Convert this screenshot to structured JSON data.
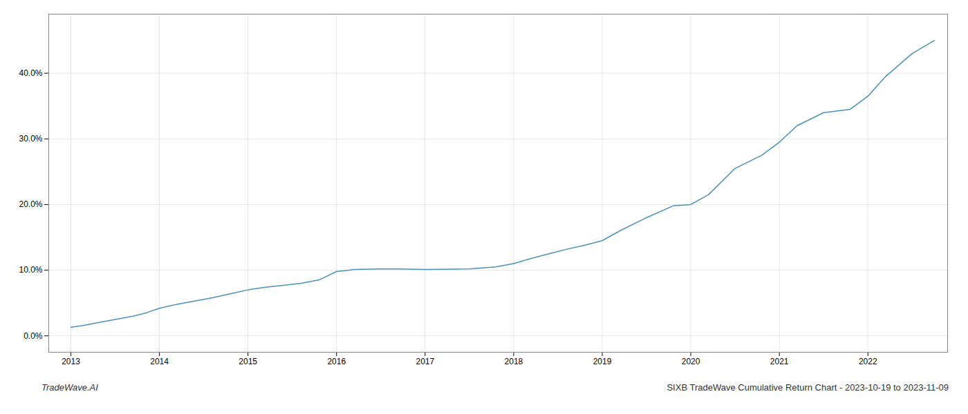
{
  "chart_data": {
    "type": "line",
    "title": "SIXB TradeWave Cumulative Return Chart - 2023-10-19 to 2023-11-09",
    "annotations": [
      "TradeWave.AI"
    ],
    "x": [
      2013.0,
      2013.15,
      2013.3,
      2013.5,
      2013.7,
      2013.85,
      2014.0,
      2014.2,
      2014.4,
      2014.6,
      2014.8,
      2015.0,
      2015.2,
      2015.4,
      2015.6,
      2015.8,
      2016.0,
      2016.2,
      2016.5,
      2016.7,
      2017.0,
      2017.2,
      2017.5,
      2017.8,
      2018.0,
      2018.2,
      2018.4,
      2018.6,
      2018.8,
      2019.0,
      2019.2,
      2019.5,
      2019.8,
      2020.0,
      2020.2,
      2020.5,
      2020.8,
      2021.0,
      2021.2,
      2021.5,
      2021.8,
      2022.0,
      2022.2,
      2022.5,
      2022.75
    ],
    "values": [
      1.3,
      1.6,
      2.0,
      2.5,
      3.0,
      3.5,
      4.2,
      4.8,
      5.3,
      5.8,
      6.4,
      7.0,
      7.4,
      7.7,
      8.0,
      8.5,
      9.8,
      10.1,
      10.2,
      10.2,
      10.1,
      10.15,
      10.2,
      10.5,
      11.0,
      11.8,
      12.5,
      13.2,
      13.8,
      14.5,
      16.0,
      18.0,
      19.8,
      20.0,
      21.5,
      25.5,
      27.5,
      29.5,
      32.0,
      34.0,
      34.5,
      36.5,
      39.5,
      43.0,
      45.0
    ],
    "color": "#4a90b8",
    "xlim": [
      2012.75,
      2022.9
    ],
    "xticks": [
      2013,
      2014,
      2015,
      2016,
      2017,
      2018,
      2019,
      2020,
      2021,
      2022
    ],
    "ylim": [
      -2.5,
      49.0
    ],
    "yticks": [
      {
        "value": 0.0,
        "label": "0.0%"
      },
      {
        "value": 10.0,
        "label": "10.0%"
      },
      {
        "value": 20.0,
        "label": "20.0%"
      },
      {
        "value": 30.0,
        "label": "30.0%"
      },
      {
        "value": 40.0,
        "label": "40.0%"
      }
    ],
    "grid": true
  }
}
